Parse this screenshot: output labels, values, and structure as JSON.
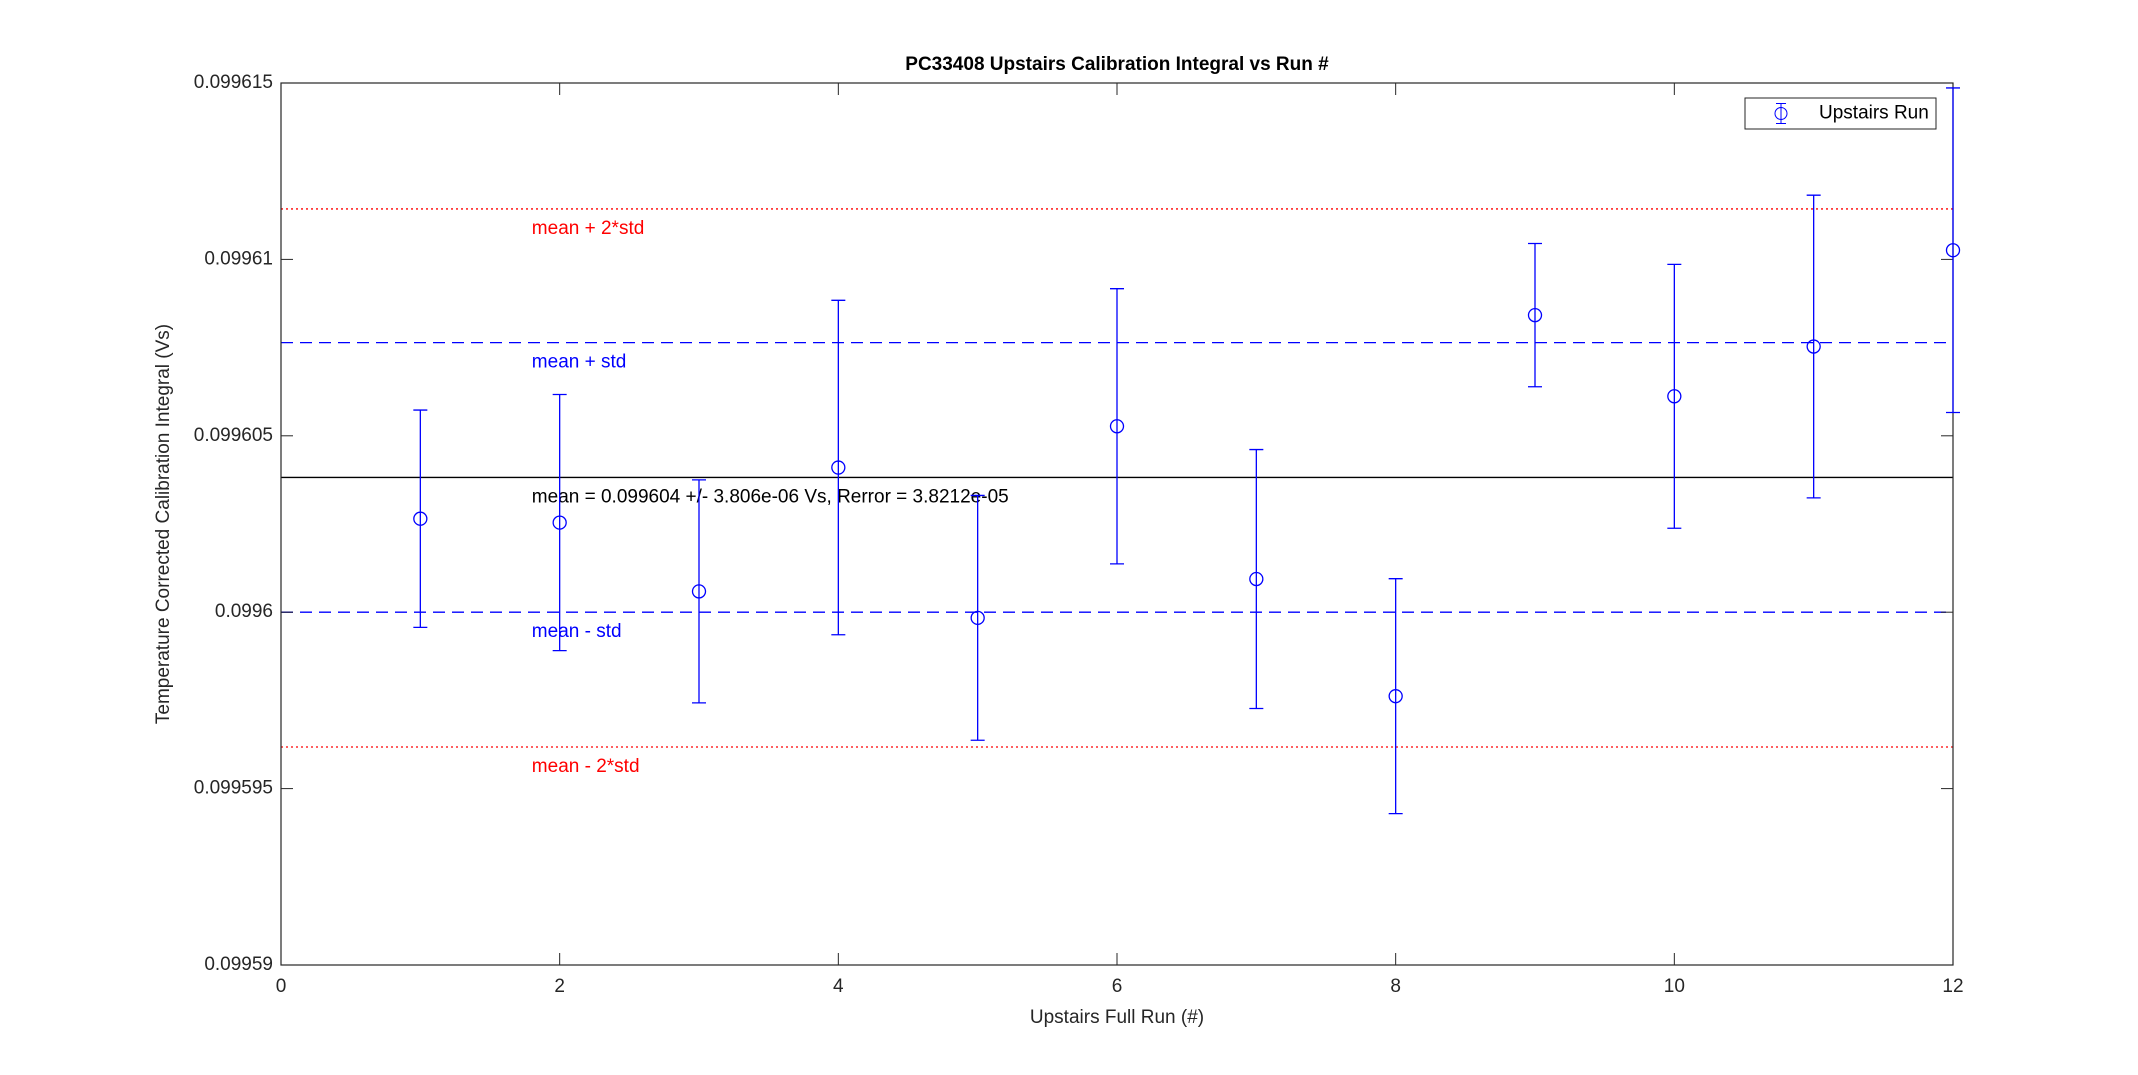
{
  "chart_data": {
    "type": "errorbar",
    "title": "PC33408 Upstairs Calibration Integral vs Run #",
    "x_label": "Upstairs Full Run (#)",
    "y_label": "Temperature Corrected Calibration Integral (Vs)",
    "x": [
      1,
      2,
      3,
      4,
      5,
      6,
      7,
      8,
      9,
      10,
      11,
      12
    ],
    "series": [
      {
        "name": "Upstairs Run",
        "color": "#0000ff",
        "values": [
          0.09960265,
          0.09960254,
          0.09960059,
          0.0996041,
          0.09959984,
          0.09960527,
          0.09960094,
          0.09959762,
          0.09960842,
          0.09960612,
          0.09960753,
          0.09961026
        ],
        "errors": [
          3.08e-06,
          3.63e-06,
          3.16e-06,
          4.74e-06,
          3.47e-06,
          3.9e-06,
          3.67e-06,
          3.33e-06,
          2.03e-06,
          3.74e-06,
          4.29e-06,
          4.6e-06
        ]
      }
    ],
    "lines": [
      {
        "y": 0.09961143,
        "color": "#ff0000",
        "style": "dotted",
        "label": "mean + 2*std"
      },
      {
        "y": 0.09960764,
        "color": "#0000ff",
        "style": "dashed",
        "label": "mean + std"
      },
      {
        "y": 0.09960382,
        "color": "#000000",
        "style": "solid",
        "label": "mean = 0.099604 +/- 3.806e-06 Vs, Rerror = 3.8212e-05"
      },
      {
        "y": 0.0996,
        "color": "#0000ff",
        "style": "dashed",
        "label": "mean - std"
      },
      {
        "y": 0.09959618,
        "color": "#ff0000",
        "style": "dotted",
        "label": "mean - 2*std"
      }
    ],
    "xlim": [
      0,
      12
    ],
    "xticks": [
      0,
      2,
      4,
      6,
      8,
      10,
      12
    ],
    "ylim": [
      0.09959,
      0.099615
    ],
    "yticks": [
      0.09959,
      0.099595,
      0.0996,
      0.099605,
      0.09961,
      0.099615
    ],
    "grid": false,
    "legend": "northeast"
  }
}
